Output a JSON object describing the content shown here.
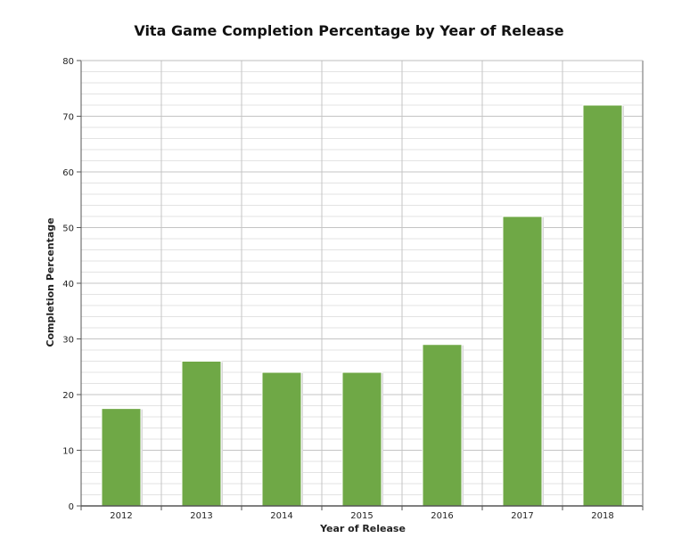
{
  "chart_data": {
    "type": "bar",
    "title": "Vita Game Completion Percentage by Year of Release",
    "xlabel": "Year of Release",
    "ylabel": "Completion Percentage",
    "categories": [
      "2012",
      "2013",
      "2014",
      "2015",
      "2016",
      "2017",
      "2018"
    ],
    "values": [
      17.5,
      26,
      24,
      24,
      29,
      52,
      72
    ],
    "ylim": [
      0,
      80
    ],
    "yticks": [
      0,
      10,
      20,
      30,
      40,
      50,
      60,
      70,
      80
    ],
    "grid": true,
    "legend": "none",
    "colors": {
      "bar": "#6fa846",
      "bar_edge": "#ffffff",
      "grid_major": "#c4c4c4",
      "grid_minor": "#e3e3e3",
      "axis": "#555555",
      "text": "#222222"
    }
  }
}
